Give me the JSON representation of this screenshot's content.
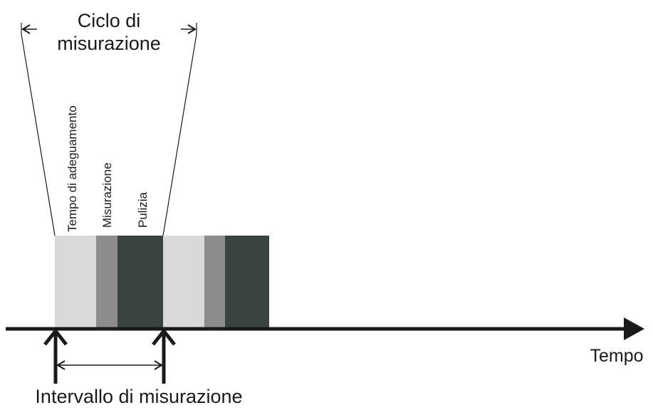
{
  "cycle_label": {
    "line1": "Ciclo di",
    "line2": "misurazione"
  },
  "phase_labels": {
    "adjustment": "Tempo di adeguamento",
    "measurement": "Misurazione",
    "cleaning": "Pulizia"
  },
  "axis_label": "Tempo",
  "interval_label": "Intervallo di misurazione",
  "colors": {
    "adjustment": "#d9d9d9",
    "measurement": "#8c8c8c",
    "cleaning": "#39433f",
    "ink": "#1a1a1a"
  }
}
